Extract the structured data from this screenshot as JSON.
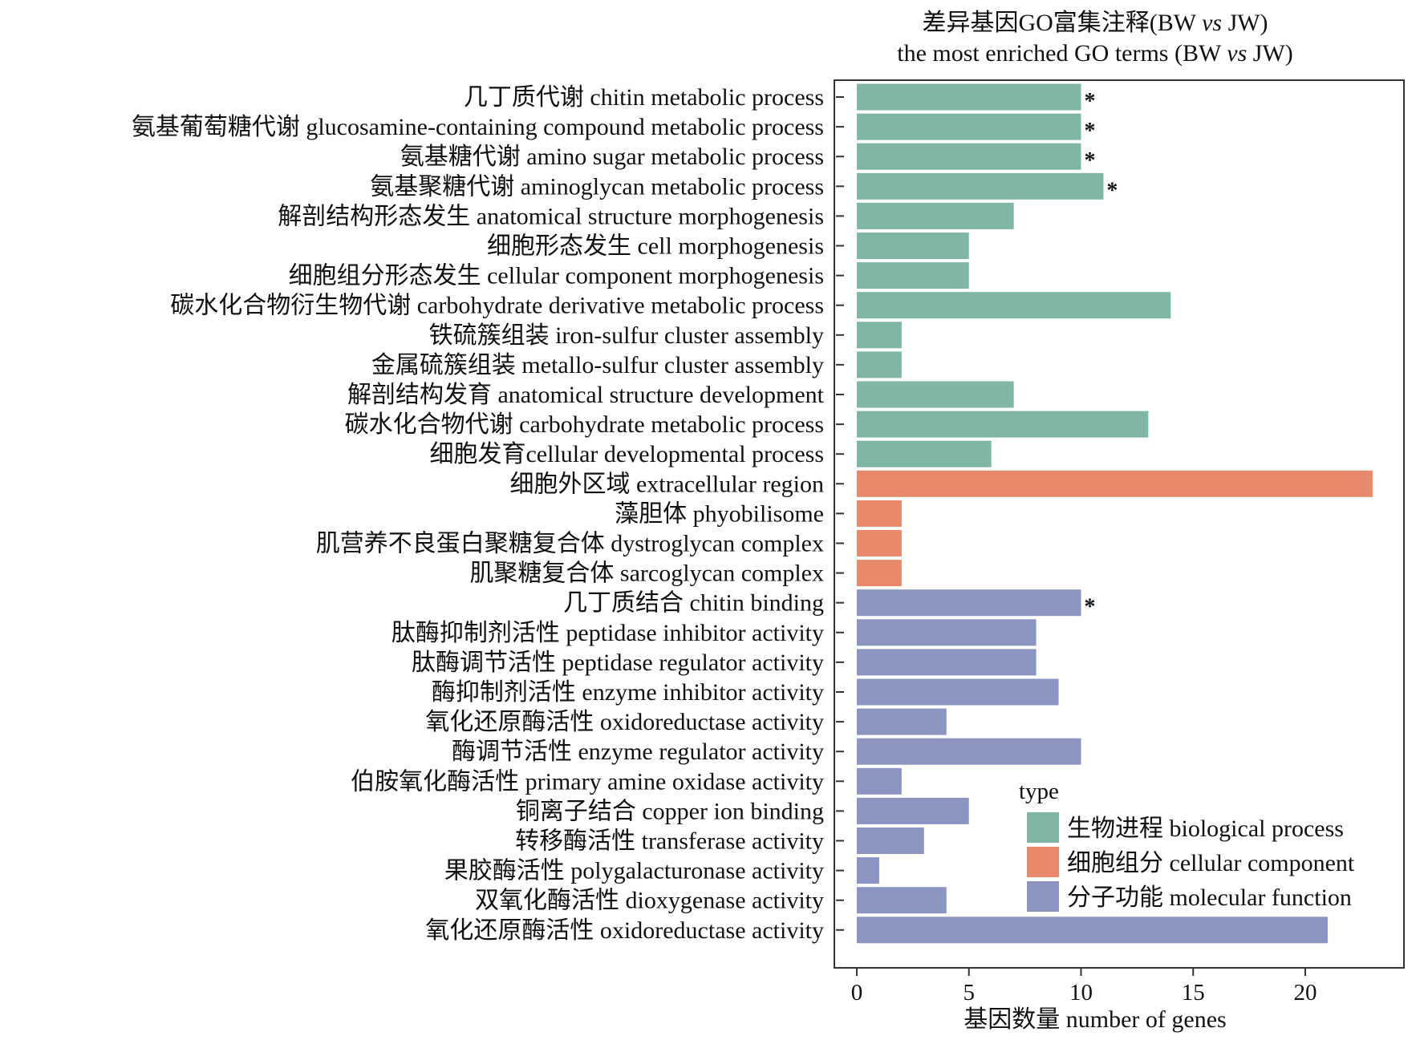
{
  "chart_data": {
    "type": "bar",
    "orientation": "horizontal",
    "title_lines": [
      {
        "text": "差异基因GO富集注释(BW ",
        "italic": "vs",
        "tail": " JW)"
      },
      {
        "text": "the most enriched GO terms (BW ",
        "italic": "vs",
        "tail": " JW)"
      }
    ],
    "xlabel": "基因数量 number of genes",
    "xlim": [
      -1,
      24.4
    ],
    "xticks": [
      "0",
      "5",
      "10",
      "15",
      "20"
    ],
    "xtick_values": [
      0,
      5,
      10,
      15,
      20
    ],
    "grid": false,
    "legend": {
      "title": "type",
      "placement": "bottom-right",
      "entries": [
        {
          "key": "bp",
          "label": "生物进程 biological process",
          "color": "#7fb7a4"
        },
        {
          "key": "cc",
          "label": "细胞组分 cellular component",
          "color": "#e8896b"
        },
        {
          "key": "mf",
          "label": "分子功能 molecular function",
          "color": "#8c95c2"
        }
      ]
    },
    "significance_marker": "*",
    "bars": [
      {
        "label": "几丁质代谢 chitin metabolic process",
        "value": 10,
        "type": "bp",
        "sig": true
      },
      {
        "label": "氨基葡萄糖代谢 glucosamine-containing compound metabolic process",
        "value": 10,
        "type": "bp",
        "sig": true
      },
      {
        "label": "氨基糖代谢 amino sugar metabolic process",
        "value": 10,
        "type": "bp",
        "sig": true
      },
      {
        "label": "氨基聚糖代谢 aminoglycan metabolic process",
        "value": 11,
        "type": "bp",
        "sig": true
      },
      {
        "label": "解剖结构形态发生 anatomical structure morphogenesis",
        "value": 7,
        "type": "bp",
        "sig": false
      },
      {
        "label": "细胞形态发生 cell morphogenesis",
        "value": 5,
        "type": "bp",
        "sig": false
      },
      {
        "label": "细胞组分形态发生 cellular component morphogenesis",
        "value": 5,
        "type": "bp",
        "sig": false
      },
      {
        "label": "碳水化合物衍生物代谢 carbohydrate derivative metabolic process",
        "value": 14,
        "type": "bp",
        "sig": false
      },
      {
        "label": "铁硫簇组装 iron-sulfur cluster assembly",
        "value": 2,
        "type": "bp",
        "sig": false
      },
      {
        "label": "金属硫簇组装 metallo-sulfur cluster assembly",
        "value": 2,
        "type": "bp",
        "sig": false
      },
      {
        "label": "解剖结构发育 anatomical structure development",
        "value": 7,
        "type": "bp",
        "sig": false
      },
      {
        "label": "碳水化合物代谢 carbohydrate metabolic process",
        "value": 13,
        "type": "bp",
        "sig": false
      },
      {
        "label": "细胞发育cellular developmental process",
        "value": 6,
        "type": "bp",
        "sig": false
      },
      {
        "label": "细胞外区域 extracellular region",
        "value": 23,
        "type": "cc",
        "sig": false
      },
      {
        "label": "藻胆体 phyobilisome",
        "value": 2,
        "type": "cc",
        "sig": false
      },
      {
        "label": "肌营养不良蛋白聚糖复合体 dystroglycan complex",
        "value": 2,
        "type": "cc",
        "sig": false
      },
      {
        "label": "肌聚糖复合体 sarcoglycan complex",
        "value": 2,
        "type": "cc",
        "sig": false
      },
      {
        "label": "几丁质结合 chitin binding",
        "value": 10,
        "type": "mf",
        "sig": true
      },
      {
        "label": "肽酶抑制剂活性 peptidase inhibitor activity",
        "value": 8,
        "type": "mf",
        "sig": false
      },
      {
        "label": "肽酶调节活性 peptidase regulator activity",
        "value": 8,
        "type": "mf",
        "sig": false
      },
      {
        "label": "酶抑制剂活性 enzyme inhibitor activity",
        "value": 9,
        "type": "mf",
        "sig": false
      },
      {
        "label": "氧化还原酶活性 oxidoreductase activity",
        "value": 4,
        "type": "mf",
        "sig": false
      },
      {
        "label": "酶调节活性 enzyme regulator activity",
        "value": 10,
        "type": "mf",
        "sig": false
      },
      {
        "label": "伯胺氧化酶活性 primary amine oxidase activity",
        "value": 2,
        "type": "mf",
        "sig": false
      },
      {
        "label": "铜离子结合 copper ion binding",
        "value": 5,
        "type": "mf",
        "sig": false
      },
      {
        "label": "转移酶活性 transferase activity",
        "value": 3,
        "type": "mf",
        "sig": false
      },
      {
        "label": "果胶酶活性 polygalacturonase activity",
        "value": 1,
        "type": "mf",
        "sig": false
      },
      {
        "label": "双氧化酶活性 dioxygenase activity",
        "value": 4,
        "type": "mf",
        "sig": false
      },
      {
        "label": "氧化还原酶活性 oxidoreductase activity",
        "value": 21,
        "type": "mf",
        "sig": false
      }
    ]
  }
}
